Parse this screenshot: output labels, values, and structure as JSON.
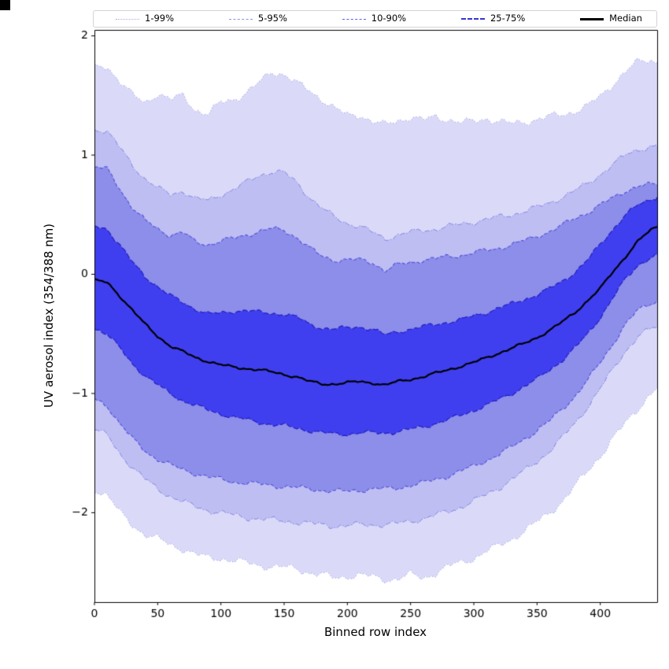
{
  "legend": {
    "items": [
      {
        "label": "1-99%",
        "color": "#a8a8ec",
        "style": "dotted",
        "width": 1
      },
      {
        "label": "5-95%",
        "color": "#8f8fe9",
        "style": "dashed",
        "width": 1
      },
      {
        "label": "10-90%",
        "color": "#5d5de0",
        "style": "dashed",
        "width": 1
      },
      {
        "label": "25-75%",
        "color": "#3434cf",
        "style": "dashed",
        "width": 2
      },
      {
        "label": "Median",
        "color": "#000000",
        "style": "solid",
        "width": 3
      }
    ]
  },
  "chart_data": {
    "type": "area",
    "title": "",
    "xlabel": "Binned row index",
    "ylabel": "UV aerosol index (354/388 nm)",
    "xlim": [
      0,
      445
    ],
    "ylim": [
      -2.75,
      2.05
    ],
    "xticks": [
      0,
      50,
      100,
      150,
      200,
      250,
      300,
      350,
      400
    ],
    "yticks": [
      -2,
      -1,
      0,
      1,
      2
    ],
    "grid": false,
    "legend_position": "top",
    "x": [
      0,
      10,
      20,
      30,
      40,
      50,
      60,
      70,
      80,
      90,
      100,
      110,
      120,
      130,
      140,
      150,
      160,
      170,
      180,
      190,
      200,
      210,
      220,
      230,
      240,
      250,
      260,
      270,
      280,
      290,
      300,
      310,
      320,
      330,
      340,
      350,
      360,
      370,
      380,
      390,
      400,
      410,
      420,
      430,
      440,
      445
    ],
    "curves": {
      "p99": [
        1.73,
        1.75,
        1.62,
        1.5,
        1.44,
        1.52,
        1.46,
        1.5,
        1.38,
        1.34,
        1.44,
        1.47,
        1.52,
        1.6,
        1.7,
        1.68,
        1.6,
        1.54,
        1.47,
        1.39,
        1.33,
        1.34,
        1.28,
        1.25,
        1.29,
        1.32,
        1.29,
        1.32,
        1.3,
        1.27,
        1.28,
        1.31,
        1.28,
        1.26,
        1.28,
        1.3,
        1.32,
        1.34,
        1.37,
        1.41,
        1.49,
        1.6,
        1.7,
        1.78,
        1.8,
        1.78
      ],
      "p95": [
        1.22,
        1.2,
        1.06,
        0.92,
        0.8,
        0.72,
        0.67,
        0.7,
        0.63,
        0.62,
        0.67,
        0.71,
        0.77,
        0.83,
        0.86,
        0.85,
        0.77,
        0.65,
        0.55,
        0.48,
        0.43,
        0.4,
        0.35,
        0.3,
        0.33,
        0.35,
        0.37,
        0.38,
        0.4,
        0.42,
        0.44,
        0.46,
        0.48,
        0.5,
        0.53,
        0.56,
        0.6,
        0.65,
        0.7,
        0.76,
        0.84,
        0.92,
        1.0,
        1.05,
        1.07,
        1.07
      ],
      "p90": [
        0.9,
        0.88,
        0.72,
        0.56,
        0.45,
        0.38,
        0.33,
        0.35,
        0.27,
        0.25,
        0.28,
        0.3,
        0.33,
        0.36,
        0.38,
        0.37,
        0.31,
        0.22,
        0.15,
        0.12,
        0.12,
        0.12,
        0.1,
        0.03,
        0.08,
        0.1,
        0.12,
        0.13,
        0.15,
        0.16,
        0.18,
        0.2,
        0.22,
        0.25,
        0.28,
        0.32,
        0.36,
        0.41,
        0.47,
        0.52,
        0.58,
        0.64,
        0.7,
        0.74,
        0.75,
        0.75
      ],
      "p75": [
        0.4,
        0.38,
        0.25,
        0.1,
        -0.02,
        -0.1,
        -0.18,
        -0.24,
        -0.29,
        -0.33,
        -0.33,
        -0.31,
        -0.3,
        -0.32,
        -0.33,
        -0.33,
        -0.36,
        -0.42,
        -0.45,
        -0.46,
        -0.45,
        -0.44,
        -0.46,
        -0.51,
        -0.48,
        -0.46,
        -0.44,
        -0.42,
        -0.4,
        -0.38,
        -0.35,
        -0.32,
        -0.28,
        -0.25,
        -0.21,
        -0.17,
        -0.12,
        -0.06,
        0.02,
        0.12,
        0.25,
        0.38,
        0.5,
        0.58,
        0.63,
        0.65
      ],
      "p50": [
        -0.05,
        -0.07,
        -0.18,
        -0.3,
        -0.42,
        -0.52,
        -0.6,
        -0.65,
        -0.7,
        -0.73,
        -0.76,
        -0.78,
        -0.79,
        -0.8,
        -0.82,
        -0.84,
        -0.86,
        -0.9,
        -0.92,
        -0.92,
        -0.91,
        -0.9,
        -0.91,
        -0.93,
        -0.9,
        -0.88,
        -0.86,
        -0.83,
        -0.8,
        -0.77,
        -0.74,
        -0.7,
        -0.66,
        -0.62,
        -0.58,
        -0.53,
        -0.47,
        -0.4,
        -0.32,
        -0.22,
        -0.12,
        0.02,
        0.15,
        0.28,
        0.37,
        0.4
      ],
      "p25": [
        -0.45,
        -0.5,
        -0.62,
        -0.75,
        -0.85,
        -0.93,
        -1.0,
        -1.06,
        -1.1,
        -1.14,
        -1.17,
        -1.2,
        -1.22,
        -1.24,
        -1.26,
        -1.27,
        -1.29,
        -1.31,
        -1.33,
        -1.34,
        -1.34,
        -1.33,
        -1.33,
        -1.33,
        -1.32,
        -1.3,
        -1.28,
        -1.25,
        -1.22,
        -1.18,
        -1.14,
        -1.1,
        -1.05,
        -1.0,
        -0.94,
        -0.88,
        -0.8,
        -0.72,
        -0.62,
        -0.5,
        -0.36,
        -0.2,
        -0.04,
        0.08,
        0.14,
        0.16
      ],
      "p10": [
        -1.05,
        -1.1,
        -1.25,
        -1.38,
        -1.48,
        -1.55,
        -1.6,
        -1.64,
        -1.67,
        -1.7,
        -1.72,
        -1.74,
        -1.75,
        -1.76,
        -1.77,
        -1.78,
        -1.79,
        -1.8,
        -1.81,
        -1.82,
        -1.82,
        -1.81,
        -1.8,
        -1.8,
        -1.79,
        -1.77,
        -1.75,
        -1.72,
        -1.69,
        -1.65,
        -1.61,
        -1.56,
        -1.51,
        -1.45,
        -1.38,
        -1.31,
        -1.23,
        -1.13,
        -1.02,
        -0.89,
        -0.74,
        -0.58,
        -0.42,
        -0.3,
        -0.24,
        -0.22
      ],
      "p5": [
        -1.3,
        -1.35,
        -1.5,
        -1.62,
        -1.72,
        -1.8,
        -1.86,
        -1.91,
        -1.95,
        -1.98,
        -2.0,
        -2.02,
        -2.04,
        -2.05,
        -2.06,
        -2.07,
        -2.08,
        -2.09,
        -2.1,
        -2.11,
        -2.11,
        -2.1,
        -2.1,
        -2.1,
        -2.09,
        -2.07,
        -2.05,
        -2.02,
        -1.99,
        -1.95,
        -1.9,
        -1.85,
        -1.79,
        -1.72,
        -1.65,
        -1.57,
        -1.48,
        -1.37,
        -1.25,
        -1.11,
        -0.96,
        -0.8,
        -0.64,
        -0.52,
        -0.46,
        -0.44
      ],
      "p1": [
        -1.8,
        -1.85,
        -2.0,
        -2.1,
        -2.18,
        -2.22,
        -2.27,
        -2.3,
        -2.35,
        -2.38,
        -2.38,
        -2.4,
        -2.42,
        -2.44,
        -2.45,
        -2.46,
        -2.47,
        -2.5,
        -2.52,
        -2.55,
        -2.53,
        -2.52,
        -2.54,
        -2.56,
        -2.55,
        -2.52,
        -2.55,
        -2.5,
        -2.45,
        -2.42,
        -2.38,
        -2.32,
        -2.28,
        -2.22,
        -2.15,
        -2.08,
        -2.0,
        -1.9,
        -1.78,
        -1.65,
        -1.52,
        -1.38,
        -1.25,
        -1.12,
        -1.0,
        -0.96
      ]
    },
    "bands": [
      {
        "label": "1-99%",
        "lower": "p1",
        "upper": "p99",
        "fill": "#dadaf8",
        "line": "#a0a0e9",
        "dash": [
          1.5,
          2.4
        ],
        "line_width": 1.0
      },
      {
        "label": "5-95%",
        "lower": "p5",
        "upper": "p95",
        "fill": "#bebef3",
        "line": "#8484e6",
        "dash": [
          6.5,
          2,
          1.5,
          2
        ],
        "line_width": 1.0
      },
      {
        "label": "10-90%",
        "lower": "p10",
        "upper": "p90",
        "fill": "#8d8dea",
        "line": "#5151db",
        "dash": [
          4.5,
          2.3
        ],
        "line_width": 1.1
      },
      {
        "label": "25-75%",
        "lower": "p25",
        "upper": "p75",
        "fill": "#3f3ff0",
        "line": "#2121bd",
        "dash": [
          7,
          2.6
        ],
        "line_width": 1.2
      }
    ],
    "median": {
      "curve": "p50",
      "label": "Median",
      "color": "#000000",
      "width": 2.2
    }
  }
}
